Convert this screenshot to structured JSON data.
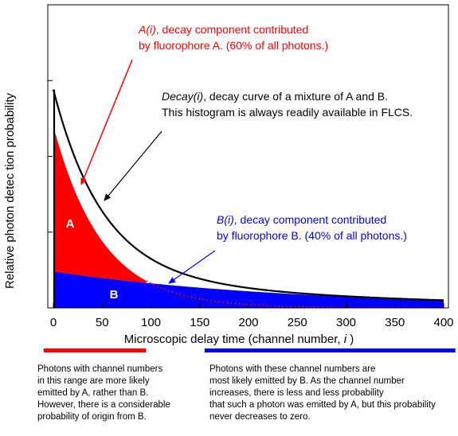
{
  "chart_data": {
    "type": "area",
    "xlabel": "Microscopic delay time (channel number, i )",
    "xlabel_prefix": "Microscopic delay time (channel number, ",
    "xlabel_var": "i",
    "xlabel_suffix": " )",
    "ylabel": "Relative photon detec tion probability",
    "xlim": [
      0,
      400
    ],
    "ylim": [
      0,
      1.0
    ],
    "x_ticks": [
      0,
      50,
      100,
      150,
      200,
      250,
      300,
      350,
      400
    ],
    "y_ticks": [
      0.25,
      0.5,
      0.75
    ],
    "y_tick_labels_shown": false,
    "grid": false,
    "series": [
      {
        "name": "A(i)",
        "color": "#ff0000",
        "fill": true,
        "peak": 0.6,
        "x": [
          0,
          25,
          50,
          75,
          100,
          125,
          150,
          200,
          250,
          300,
          400
        ],
        "values": [
          0.6,
          0.366,
          0.218,
          0.132,
          0.081,
          0.048,
          0.029,
          0.011,
          0.004,
          0.0015,
          0.0002
        ]
      },
      {
        "name": "B(i)",
        "color": "#0000ff",
        "fill": true,
        "peak": 0.12,
        "x": [
          0,
          50,
          100,
          150,
          200,
          250,
          300,
          350,
          400
        ],
        "values": [
          0.12,
          0.098,
          0.081,
          0.066,
          0.054,
          0.044,
          0.036,
          0.03,
          0.025
        ]
      },
      {
        "name": "Decay(i)",
        "color": "#000000",
        "fill": false,
        "x": [
          0,
          25,
          50,
          75,
          100,
          125,
          150,
          200,
          250,
          300,
          400
        ],
        "values": [
          0.72,
          0.475,
          0.316,
          0.24,
          0.162,
          0.118,
          0.095,
          0.065,
          0.048,
          0.0375,
          0.0252
        ]
      }
    ],
    "crossover_x": 95,
    "area_labels": [
      {
        "text": "A",
        "color": "#ffffff"
      },
      {
        "text": "B",
        "color": "#ffffff"
      }
    ],
    "annotations": {
      "a_term": "A(i)",
      "a_line1_rest": ", decay component contributed",
      "a_line2": "by fluorophore A. (60% of all photons.)",
      "decay_term": "Decay(i)",
      "decay_line1_rest": ", decay curve of a mixture of A and B.",
      "decay_line2": "This histogram is always readily available in FLCS.",
      "b_term": "B(i)",
      "b_line1_rest": ", decay component contributed",
      "b_line2": "by fluorophore B. (40% of all photons.)"
    },
    "range_bars": [
      {
        "color": "#ff0000",
        "from": -10,
        "to": 95
      },
      {
        "color": "#0000ff",
        "from": 155,
        "to": 412
      }
    ],
    "notes": {
      "left": "Photons with channel numbers\nin this range are more likely\nemitted by A, rather than B.\nHowever, there is a considerable\nprobability of origin from B.",
      "right": "Photons with these channel numbers are\nmost likely emitted by B. As the channel number\nincreases, there is less and less probability\nthat such a photon was emitted by A, but this probability\nnever decreases to zero."
    }
  }
}
